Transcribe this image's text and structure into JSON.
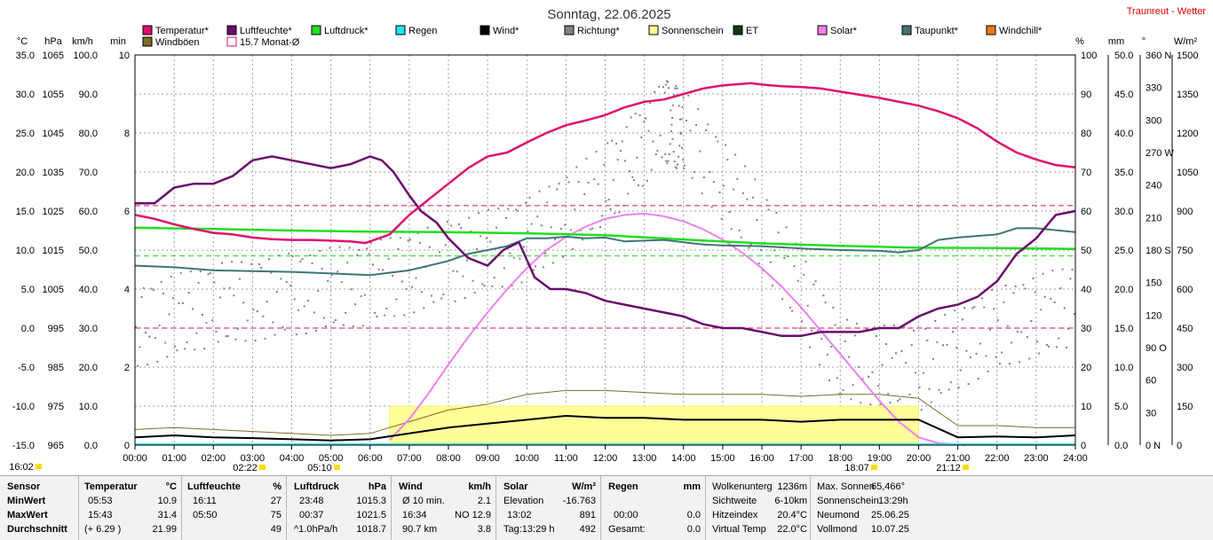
{
  "chart_data": {
    "type": "line",
    "title": "Sonntag, 22.06.2025",
    "station": "Traunreut - Wetter",
    "x_ticks": [
      "00:00",
      "01:00",
      "02:00",
      "03:00",
      "04:00",
      "05:00",
      "06:00",
      "07:00",
      "08:00",
      "09:00",
      "10:00",
      "11:00",
      "12:00",
      "13:00",
      "14:00",
      "15:00",
      "16:00",
      "17:00",
      "18:00",
      "19:00",
      "20:00",
      "21:00",
      "22:00",
      "23:00",
      "24:00"
    ],
    "x_range_hours": [
      0,
      24
    ],
    "grid": true,
    "axes": {
      "temp": {
        "unit": "°C",
        "range": [
          -15,
          35
        ],
        "ticks": [
          "35.0",
          "30.0",
          "25.0",
          "20.0",
          "15.0",
          "10.0",
          "5.0",
          "0.0",
          "-5.0",
          "-10.0",
          "-15.0"
        ]
      },
      "pressure": {
        "unit": "hPa",
        "range": [
          965,
          1065
        ],
        "ticks": [
          "1065",
          "1055",
          "1045",
          "1035",
          "1025",
          "1015",
          "1005",
          "995",
          "985",
          "975",
          "965"
        ]
      },
      "wind": {
        "unit": "km/h",
        "range": [
          0,
          100
        ],
        "ticks": [
          "100.0",
          "90.0",
          "80.0",
          "70.0",
          "60.0",
          "50.0",
          "40.0",
          "30.0",
          "20.0",
          "10.0",
          "0.0"
        ]
      },
      "sunshine": {
        "unit": "min",
        "range": [
          0,
          10
        ],
        "ticks": [
          "10",
          "8",
          "6",
          "4",
          "2",
          "0"
        ]
      },
      "humidity": {
        "unit": "%",
        "range": [
          0,
          100
        ],
        "ticks": [
          "100",
          "90",
          "80",
          "70",
          "60",
          "50",
          "40",
          "30",
          "20",
          "10",
          "0"
        ]
      },
      "rain": {
        "unit": "mm",
        "range": [
          0,
          50
        ],
        "ticks": [
          "50.0",
          "45.0",
          "40.0",
          "35.0",
          "30.0",
          "25.0",
          "20.0",
          "15.0",
          "10.0",
          "5.0",
          "0.0"
        ]
      },
      "direction": {
        "unit": "°",
        "range": [
          0,
          360
        ],
        "ticks": [
          "360 N",
          "330",
          "300",
          "270 W",
          "240",
          "210",
          "180 S",
          "150",
          "120",
          "90 O",
          "60",
          "30",
          "0 N"
        ]
      },
      "solar": {
        "unit": "W/m²",
        "range": [
          0,
          1500
        ],
        "ticks": [
          "1500",
          "1350",
          "1200",
          "1050",
          "900",
          "750",
          "600",
          "450",
          "300",
          "150",
          "0"
        ]
      }
    },
    "legend": [
      {
        "name": "Temperatur*",
        "color": "#e0106e"
      },
      {
        "name": "Luftfeuchte*",
        "color": "#6a0d6d"
      },
      {
        "name": "Luftdruck*",
        "color": "#22dd22"
      },
      {
        "name": "Regen",
        "color": "#22e6ee"
      },
      {
        "name": "Wind*",
        "color": "#000000"
      },
      {
        "name": "Richtung*",
        "color": "#808080"
      },
      {
        "name": "Sonnenschein",
        "color": "#ffff99"
      },
      {
        "name": "ET",
        "color": "#0b3d0b"
      },
      {
        "name": "Solar*",
        "color": "#f080f0"
      },
      {
        "name": "Taupunkt*",
        "color": "#3f7575"
      },
      {
        "name": "Windchill*",
        "color": "#f07818"
      },
      {
        "name": "Windböen",
        "color": "#7a6d2a"
      },
      {
        "name": "15.7 Monat-Ø",
        "color": "#e0106e"
      }
    ],
    "monthly_avg_temp": 15.7,
    "ref_lines": [
      {
        "axis": "temp",
        "value": 15.7,
        "color": "#e0106e"
      },
      {
        "axis": "pressure",
        "value": 1013.5,
        "color": "#22dd22"
      },
      {
        "axis": "temp",
        "value": 0,
        "color": "#e0106e"
      }
    ],
    "series": [
      {
        "name": "Temperatur*",
        "axis": "temp",
        "color": "#e0106e",
        "x": [
          0,
          0.5,
          1,
          1.5,
          2,
          2.5,
          3,
          3.5,
          4,
          4.5,
          5,
          5.5,
          5.88,
          6.5,
          7,
          7.5,
          8,
          8.5,
          9,
          9.5,
          10,
          10.5,
          11,
          11.5,
          12,
          12.5,
          13,
          13.5,
          14,
          14.5,
          15,
          15.5,
          15.72,
          16,
          16.5,
          17,
          17.5,
          18,
          18.5,
          19,
          19.5,
          20,
          20.5,
          21,
          21.5,
          22,
          22.5,
          23,
          23.5,
          24
        ],
        "y": [
          14.5,
          14.0,
          13.3,
          12.7,
          12.2,
          12.0,
          11.6,
          11.4,
          11.3,
          11.3,
          11.2,
          11.1,
          10.9,
          12.0,
          14.5,
          16.5,
          18.5,
          20.5,
          22.0,
          22.5,
          23.8,
          25.0,
          26.0,
          26.6,
          27.3,
          28.3,
          29.0,
          29.3,
          30.0,
          30.7,
          31.1,
          31.3,
          31.4,
          31.2,
          31.0,
          30.9,
          30.7,
          30.3,
          29.9,
          29.5,
          29.0,
          28.5,
          27.8,
          26.9,
          25.6,
          23.9,
          22.5,
          21.6,
          20.9,
          20.6
        ]
      },
      {
        "name": "Luftfeuchte*",
        "axis": "humidity",
        "color": "#6a0d6d",
        "x": [
          0,
          0.5,
          1,
          1.5,
          2,
          2.5,
          3,
          3.5,
          4,
          4.5,
          5,
          5.5,
          6,
          6.3,
          6.6,
          7,
          7.3,
          7.7,
          8,
          8.5,
          9,
          9.4,
          9.8,
          10.2,
          10.6,
          11,
          11.5,
          12,
          12.5,
          13,
          13.5,
          14,
          14.5,
          15,
          15.5,
          16,
          16.5,
          17,
          17.5,
          18,
          18.5,
          19,
          19.5,
          20,
          20.5,
          21,
          21.5,
          22,
          22.5,
          23,
          23.5,
          24
        ],
        "y": [
          62,
          62,
          66,
          67,
          67,
          69,
          73,
          74,
          73,
          72,
          71,
          72,
          74,
          73,
          70,
          64,
          60,
          57,
          53,
          48,
          46,
          50,
          52,
          43,
          40,
          40,
          39,
          37,
          36,
          35,
          34,
          33,
          31,
          30,
          30,
          29,
          28,
          28,
          29,
          29,
          29,
          30,
          30,
          33,
          35,
          36,
          38,
          42,
          49,
          53,
          59,
          60
        ]
      },
      {
        "name": "Luftdruck*",
        "axis": "pressure",
        "color": "#22dd22",
        "x": [
          0,
          2,
          4,
          6,
          8,
          10,
          12,
          14,
          16,
          18,
          20,
          22,
          24
        ],
        "y": [
          1020.7,
          1020.4,
          1020.0,
          1019.7,
          1019.6,
          1019.3,
          1018.8,
          1017.7,
          1016.7,
          1016.1,
          1015.6,
          1015.5,
          1015.3
        ]
      },
      {
        "name": "Taupunkt*",
        "axis": "temp",
        "color": "#3f7575",
        "x": [
          0,
          1,
          2,
          3,
          4,
          5,
          6,
          7,
          8,
          8.5,
          9,
          9.5,
          10,
          10.5,
          11,
          11.5,
          12,
          12.5,
          13,
          13.5,
          14,
          14.5,
          15,
          16,
          17,
          18,
          19,
          19.5,
          20,
          20.5,
          21,
          22,
          22.5,
          23,
          24
        ],
        "y": [
          8.0,
          7.8,
          7.4,
          7.3,
          7.2,
          7.0,
          6.8,
          7.4,
          8.6,
          9.5,
          10.0,
          10.5,
          11.5,
          11.5,
          11.7,
          11.5,
          11.6,
          11.1,
          11.2,
          11.3,
          11.0,
          10.7,
          10.6,
          10.5,
          10.2,
          10.0,
          9.9,
          9.7,
          10.0,
          11.3,
          11.6,
          12.0,
          12.8,
          12.8,
          12.3
        ]
      },
      {
        "name": "Solar*",
        "axis": "solar",
        "color": "#f080f0",
        "x": [
          6.5,
          7,
          7.5,
          8,
          8.5,
          9,
          9.5,
          10,
          10.5,
          11,
          11.5,
          12,
          12.5,
          13,
          13.5,
          14,
          14.5,
          15,
          15.5,
          16,
          16.5,
          17,
          17.5,
          18,
          18.5,
          19,
          19.5,
          20,
          20.5,
          21,
          21.2
        ],
        "y": [
          20,
          100,
          200,
          310,
          415,
          510,
          600,
          680,
          750,
          800,
          840,
          870,
          885,
          890,
          880,
          860,
          830,
          790,
          740,
          680,
          610,
          530,
          440,
          350,
          260,
          170,
          90,
          30,
          8,
          2,
          0
        ]
      },
      {
        "name": "Wind*",
        "axis": "wind",
        "color": "#000000",
        "x": [
          0,
          1,
          2,
          3,
          4,
          5,
          6,
          7,
          8,
          9,
          10,
          11,
          12,
          13,
          14,
          15,
          16,
          17,
          18,
          19,
          20,
          21,
          22,
          23,
          24
        ],
        "y": [
          2.0,
          2.5,
          2.0,
          1.8,
          1.5,
          1.2,
          1.5,
          3.0,
          4.5,
          5.5,
          6.5,
          7.5,
          7.0,
          7.0,
          6.5,
          6.5,
          6.5,
          6.0,
          6.5,
          6.5,
          6.5,
          2.0,
          2.2,
          2.0,
          2.5
        ]
      },
      {
        "name": "Windböen",
        "axis": "wind",
        "color": "#7a6d2a",
        "x": [
          0,
          1,
          2,
          3,
          4,
          5,
          6,
          7,
          8,
          9,
          10,
          11,
          12,
          13,
          14,
          15,
          16,
          17,
          18,
          19,
          20,
          21,
          22,
          23,
          24
        ],
        "y": [
          4.0,
          4.5,
          4.0,
          3.5,
          3.0,
          2.5,
          3.0,
          6.0,
          9.0,
          10.5,
          13.0,
          14.0,
          14.0,
          13.5,
          13.0,
          13.0,
          13.0,
          12.5,
          13.0,
          13.0,
          12.0,
          5.0,
          5.0,
          4.5,
          4.5
        ]
      },
      {
        "name": "Sonnenschein",
        "axis": "sunshine",
        "color": "#ffff99",
        "x": [
          6.5,
          20
        ],
        "y": [
          1.0,
          1.0
        ]
      },
      {
        "name": "Richtung*",
        "axis": "direction",
        "color": "#808080",
        "x": [
          0,
          2,
          4,
          6,
          8,
          10,
          12,
          13.5,
          14,
          16,
          18,
          20,
          22,
          24
        ],
        "y": [
          110,
          130,
          140,
          150,
          170,
          190,
          240,
          300,
          290,
          200,
          80,
          70,
          110,
          130
        ]
      }
    ],
    "markers": [
      {
        "label": "16:02"
      },
      {
        "label": "02:22"
      },
      {
        "label": "05:10"
      },
      {
        "label": "18:07"
      },
      {
        "label": "21:12"
      }
    ]
  },
  "stats": {
    "sensor": {
      "header": "Sensor",
      "rows": [
        "MinWert",
        "MaxWert",
        "Durchschnitt"
      ]
    },
    "temperatur": {
      "header": "Temperatur",
      "unit": "°C",
      "rows": [
        [
          "05:53",
          "10.9"
        ],
        [
          "15:43",
          "31.4"
        ],
        [
          "(+ 6.29 )",
          "21.99"
        ]
      ]
    },
    "luftfeuchte": {
      "header": "Luftfeuchte",
      "unit": "%",
      "rows": [
        [
          "16:11",
          "27"
        ],
        [
          "05:50",
          "75"
        ],
        [
          "",
          "49"
        ]
      ]
    },
    "luftdruck": {
      "header": "Luftdruck",
      "unit": "hPa",
      "rows": [
        [
          "23:48",
          "1015.3"
        ],
        [
          "00:37",
          "1021.5"
        ],
        [
          "^1.0hPa/h",
          "1018.7"
        ]
      ]
    },
    "wind": {
      "header": "Wind",
      "unit": "km/h",
      "rows": [
        [
          "Ø 10 min.",
          "2.1"
        ],
        [
          "16:34",
          "NO 12.9"
        ],
        [
          "90.7 km",
          "3.8"
        ]
      ]
    },
    "solar": {
      "header": "Solar",
      "unit": "W/m²",
      "rows": [
        [
          "Elevation",
          "-16.763"
        ],
        [
          "13:02",
          "891"
        ],
        [
          "Tag:13:29 h",
          "492"
        ]
      ]
    },
    "regen": {
      "header": "Regen",
      "unit": "mm",
      "rows": [
        [
          "",
          ""
        ],
        [
          "00:00",
          "0.0"
        ],
        [
          "Gesamt:",
          "0.0"
        ]
      ]
    },
    "extra1": {
      "rows": [
        [
          "Wolkenunterg",
          "1236m"
        ],
        [
          "Sichtweite",
          "6-10km"
        ],
        [
          "Hitzeindex",
          "20.4°C"
        ],
        [
          "Virtual Temp",
          "22.0°C"
        ]
      ]
    },
    "extra2": {
      "rows": [
        [
          "Max. Sonnen",
          "65,466°"
        ],
        [
          "Sonnenschein",
          "13:29h"
        ],
        [
          "Neumond",
          "25.06.25"
        ],
        [
          "Vollmond",
          "10.07.25"
        ]
      ]
    }
  }
}
